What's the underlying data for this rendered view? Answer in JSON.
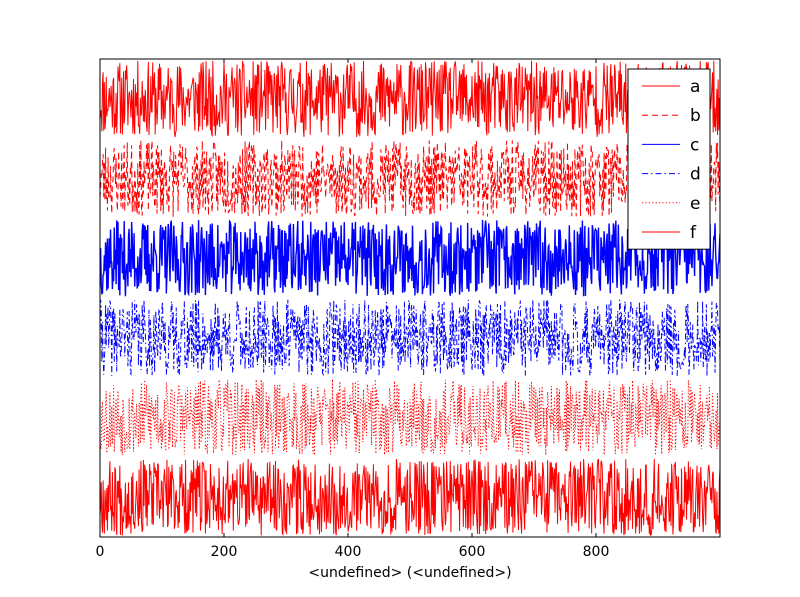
{
  "chart_data": {
    "type": "line",
    "title": "",
    "xlabel": "<undefined> (<undefined>)",
    "ylabel": "",
    "xlim": [
      0,
      1000
    ],
    "x_ticks": [
      0,
      200,
      400,
      600,
      800
    ],
    "x_tick_labels": [
      "0",
      "200",
      "400",
      "600",
      "800"
    ],
    "y_ticks_visible": false,
    "grid": false,
    "legend_position": "top-right",
    "x_sampling": "integer steps 0–1000",
    "series": [
      {
        "name": "a",
        "color": "#ff0000",
        "linestyle": "solid",
        "band_center": 5.5,
        "amplitude": 0.48,
        "seed": 11
      },
      {
        "name": "b",
        "color": "#ff0000",
        "linestyle": "dashed",
        "band_center": 4.5,
        "amplitude": 0.48,
        "seed": 23
      },
      {
        "name": "c",
        "color": "#0000ff",
        "linestyle": "solid",
        "band_center": 3.5,
        "amplitude": 0.48,
        "seed": 37
      },
      {
        "name": "d",
        "color": "#0000ff",
        "linestyle": "dashdot",
        "band_center": 2.5,
        "amplitude": 0.48,
        "seed": 41
      },
      {
        "name": "e",
        "color": "#ff0000",
        "linestyle": "dotted",
        "band_center": 1.5,
        "amplitude": 0.48,
        "seed": 53
      },
      {
        "name": "f",
        "color": "#ff0000",
        "linestyle": "solid",
        "band_center": 0.5,
        "amplitude": 0.48,
        "seed": 67
      }
    ],
    "ylim": [
      0,
      6
    ]
  }
}
